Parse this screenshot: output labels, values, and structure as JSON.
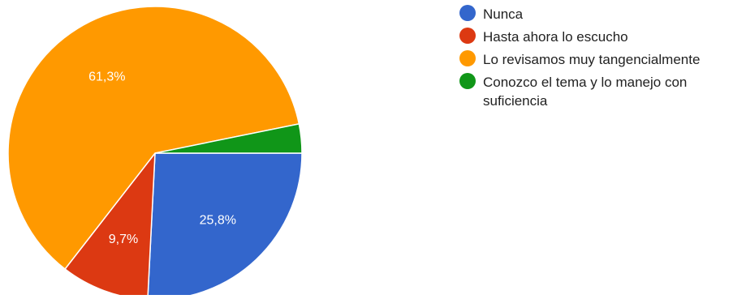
{
  "chart_data": {
    "type": "pie",
    "categories": [
      "Nunca",
      "Hasta ahora lo escucho",
      "Lo revisamos muy tangencialmente",
      "Conozco el tema y lo manejo con suficiencia"
    ],
    "values": [
      25.8,
      9.7,
      61.3,
      3.2
    ],
    "value_labels": [
      "25,8%",
      "9,7%",
      "61,3%",
      ""
    ],
    "colors": [
      "#3366cc",
      "#dc3912",
      "#ff9900",
      "#109618"
    ],
    "legend_position": "right"
  },
  "legend": {
    "items": [
      {
        "label": "Nunca",
        "color": "#3366cc"
      },
      {
        "label": "Hasta ahora lo escucho",
        "color": "#dc3912"
      },
      {
        "label": "Lo revisamos muy tangencialmente",
        "color": "#ff9900"
      },
      {
        "label": "Conozco el tema y lo manejo con suficiencia",
        "color": "#109618"
      }
    ]
  }
}
